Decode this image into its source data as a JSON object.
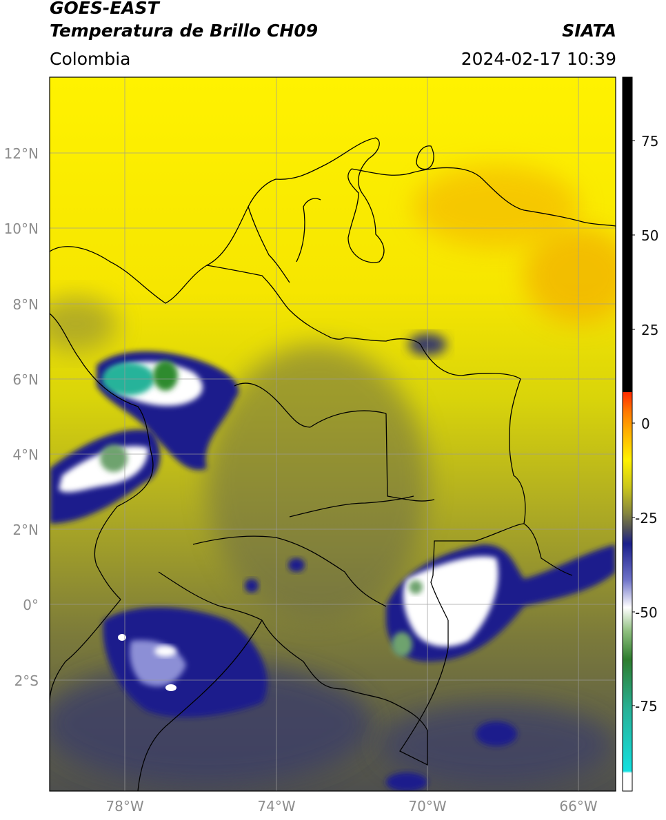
{
  "header": {
    "satellite": "GOES-EAST",
    "product": "Temperatura de Brillo CH09",
    "org": "SIATA",
    "region": "Colombia",
    "datetime": "2024-02-17 10:39"
  },
  "map": {
    "lat_ticks": [
      "12°N",
      "10°N",
      "8°N",
      "6°N",
      "4°N",
      "2°N",
      "0°",
      "2°S"
    ],
    "lon_ticks": [
      "78°W",
      "74°W",
      "70°W",
      "66°W"
    ]
  },
  "colorbar": {
    "ticks": [
      "75",
      "50",
      "25",
      "0",
      "-25",
      "-50",
      "-75"
    ],
    "colors": {
      "warmest": "#000000",
      "red": "#ff1a00",
      "orange": "#ff9900",
      "yellow": "#fff200",
      "olive": "#a8a82a",
      "gray": "#555555",
      "navy": "#1a1f8c",
      "white": "#ffffff",
      "green": "#2e8b2e",
      "teal": "#27b39a",
      "cyan": "#14e0e0"
    }
  }
}
